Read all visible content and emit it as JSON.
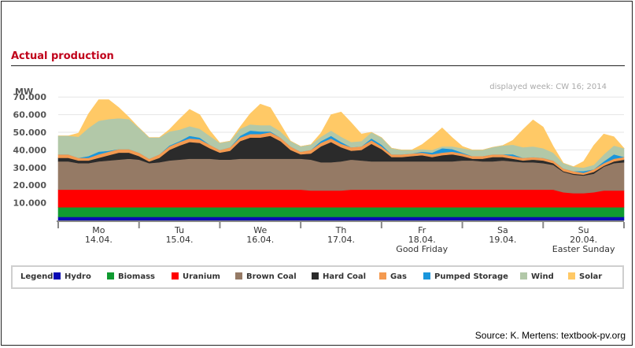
{
  "title": "Actual production",
  "source": "Source: K. Mertens: textbook-pv.org",
  "chart_data": {
    "type": "area",
    "stacked": true,
    "ylabel": "MW",
    "ylim": [
      0,
      75000
    ],
    "yticks": [
      "10.000",
      "20.000",
      "30.000",
      "40.000",
      "50.000",
      "60.000",
      "70.000"
    ],
    "annotation": "displayed week: CW 16; 2014",
    "grid": true,
    "legend_title": "Legend:",
    "legend_position": "bottom",
    "days": [
      {
        "name": "Mo",
        "date": "14.04.",
        "note": ""
      },
      {
        "name": "Tu",
        "date": "15.04.",
        "note": ""
      },
      {
        "name": "We",
        "date": "16.04.",
        "note": ""
      },
      {
        "name": "Th",
        "date": "17.04.",
        "note": ""
      },
      {
        "name": "Fr",
        "date": "18.04.",
        "note": "Good Friday"
      },
      {
        "name": "Sa",
        "date": "19.04.",
        "note": ""
      },
      {
        "name": "Su",
        "date": "20.04.",
        "note": "Easter Sunday"
      }
    ],
    "x_hours": [
      0,
      3,
      6,
      9,
      12,
      15,
      18,
      21,
      24,
      27,
      30,
      33,
      36,
      39,
      42,
      45,
      48,
      51,
      54,
      57,
      60,
      63,
      66,
      69,
      72,
      75,
      78,
      81,
      84,
      87,
      90,
      93,
      96,
      99,
      102,
      105,
      108,
      111,
      114,
      117,
      120,
      123,
      126,
      129,
      132,
      135,
      138,
      141,
      144,
      147,
      150,
      153,
      156,
      159,
      162,
      165,
      168
    ],
    "series": [
      {
        "name": "Hydro",
        "color": "#0a0ab4",
        "values": [
          2000,
          2000,
          2000,
          2000,
          2000,
          2000,
          2000,
          2000,
          2000,
          2000,
          2000,
          2000,
          2000,
          2000,
          2000,
          2000,
          2000,
          2000,
          2000,
          2000,
          2000,
          2000,
          2000,
          2000,
          2000,
          2000,
          2000,
          2000,
          2000,
          2000,
          2000,
          2000,
          2000,
          2000,
          2000,
          2000,
          2000,
          2000,
          2000,
          2000,
          2000,
          2000,
          2000,
          2000,
          2000,
          2000,
          2000,
          2000,
          2000,
          2000,
          2000,
          2000,
          2000,
          2000,
          2000,
          2000,
          2000
        ]
      },
      {
        "name": "Biomass",
        "color": "#109a30",
        "values": [
          5500,
          5500,
          5500,
          5500,
          5500,
          5500,
          5500,
          5500,
          5500,
          5500,
          5500,
          5500,
          5500,
          5500,
          5500,
          5500,
          5500,
          5500,
          5500,
          5500,
          5500,
          5500,
          5500,
          5500,
          5500,
          5500,
          5500,
          5500,
          5500,
          5500,
          5500,
          5500,
          5500,
          5500,
          5500,
          5500,
          5500,
          5500,
          5500,
          5500,
          5500,
          5500,
          5500,
          5500,
          5500,
          5500,
          5500,
          5500,
          5500,
          5500,
          5500,
          5500,
          5500,
          5500,
          5500,
          5500,
          5500
        ]
      },
      {
        "name": "Uranium",
        "color": "#ff0000",
        "values": [
          10000,
          10000,
          10000,
          10000,
          10000,
          10000,
          10000,
          10000,
          10000,
          10000,
          10000,
          10000,
          10000,
          10000,
          10000,
          10000,
          10000,
          10000,
          10000,
          10000,
          10000,
          10000,
          10000,
          10000,
          10000,
          9500,
          9500,
          9500,
          9500,
          10000,
          10000,
          10000,
          10000,
          10000,
          10000,
          10000,
          10000,
          10000,
          10000,
          10000,
          10000,
          10000,
          10000,
          10000,
          10000,
          10000,
          10000,
          10000,
          10000,
          10000,
          8500,
          8000,
          8000,
          8500,
          9500,
          9500,
          9500
        ]
      },
      {
        "name": "Brown Coal",
        "color": "#957a65",
        "values": [
          16000,
          16000,
          15000,
          15000,
          16000,
          16500,
          17000,
          17500,
          17000,
          15000,
          15500,
          16500,
          17000,
          17500,
          17500,
          17500,
          17000,
          17000,
          17500,
          17500,
          17500,
          17500,
          17500,
          17500,
          17500,
          17500,
          16000,
          16000,
          16500,
          17000,
          16500,
          16000,
          16000,
          16000,
          16000,
          16000,
          16000,
          16000,
          16000,
          16000,
          16500,
          16500,
          16000,
          16000,
          16500,
          16000,
          15500,
          15500,
          15000,
          14000,
          11500,
          10500,
          10000,
          10500,
          13500,
          15500,
          16000
        ]
      },
      {
        "name": "Hard Coal",
        "color": "#2b2b2b",
        "values": [
          2000,
          2000,
          1500,
          1500,
          2000,
          3000,
          4000,
          3500,
          2000,
          1000,
          2500,
          6000,
          8000,
          9500,
          9000,
          6000,
          4000,
          5000,
          10000,
          12000,
          12000,
          13000,
          10000,
          5000,
          2500,
          3500,
          9000,
          11500,
          8000,
          5000,
          6000,
          10000,
          7000,
          2500,
          2500,
          3000,
          3500,
          2500,
          3500,
          4000,
          2500,
          1000,
          1500,
          2500,
          2000,
          1500,
          1000,
          1500,
          1500,
          1000,
          500,
          500,
          500,
          1000,
          500,
          1000,
          1500
        ]
      },
      {
        "name": "Gas",
        "color": "#f49a50",
        "values": [
          2000,
          2000,
          1500,
          1500,
          2000,
          2000,
          2000,
          2000,
          2000,
          1500,
          2000,
          2000,
          2000,
          2000,
          2000,
          2000,
          1500,
          2000,
          2000,
          2000,
          2000,
          2000,
          2000,
          2000,
          1500,
          2000,
          2000,
          2000,
          2000,
          2000,
          2000,
          2000,
          1500,
          1500,
          1500,
          1500,
          1500,
          1500,
          1500,
          1500,
          1500,
          1500,
          1500,
          1500,
          1500,
          1500,
          1500,
          1500,
          1500,
          1500,
          1500,
          1500,
          1000,
          1500,
          1500,
          1500,
          1500
        ]
      },
      {
        "name": "Pumped Storage",
        "color": "#1a96dc",
        "values": [
          0,
          0,
          0,
          1000,
          1500,
          500,
          0,
          0,
          0,
          0,
          0,
          500,
          500,
          1500,
          1000,
          0,
          0,
          0,
          1000,
          2000,
          1500,
          500,
          0,
          0,
          0,
          0,
          1000,
          1500,
          1000,
          0,
          0,
          1000,
          1000,
          0,
          0,
          0,
          500,
          1000,
          2500,
          1500,
          500,
          0,
          0,
          0,
          0,
          1000,
          0,
          0,
          0,
          0,
          0,
          0,
          1000,
          0,
          1000,
          2500,
          0
        ]
      },
      {
        "name": "Wind",
        "color": "#b2c8a8",
        "values": [
          10500,
          10500,
          12000,
          16000,
          17500,
          18000,
          17500,
          17000,
          14000,
          12000,
          9500,
          8000,
          6500,
          5500,
          5000,
          5000,
          4000,
          3500,
          4000,
          3500,
          3500,
          3500,
          3500,
          3000,
          3000,
          3000,
          2500,
          3000,
          3000,
          3000,
          3000,
          3500,
          4000,
          3500,
          2500,
          2000,
          1500,
          1500,
          1000,
          1500,
          2500,
          3500,
          3500,
          4000,
          5000,
          5500,
          6000,
          6000,
          5500,
          4500,
          3000,
          2500,
          2000,
          2500,
          4000,
          5000,
          5000
        ]
      },
      {
        "name": "Solar",
        "color": "#ffc966",
        "values": [
          0,
          0,
          2000,
          8000,
          12000,
          11000,
          6000,
          1000,
          0,
          0,
          0,
          1000,
          6000,
          9500,
          8000,
          3000,
          0,
          0,
          1000,
          6000,
          12000,
          10000,
          4000,
          0,
          0,
          0,
          2000,
          9000,
          14000,
          11000,
          4000,
          0,
          0,
          0,
          0,
          0,
          2500,
          7500,
          10500,
          5000,
          1000,
          0,
          0,
          0,
          0,
          2500,
          10000,
          15000,
          12000,
          3500,
          0,
          0,
          3500,
          11000,
          11500,
          5000,
          0
        ]
      }
    ]
  }
}
